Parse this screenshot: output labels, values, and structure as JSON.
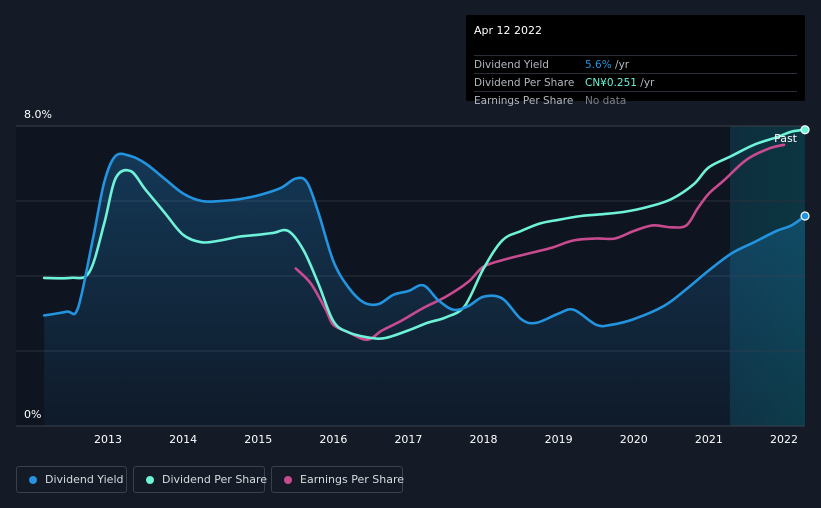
{
  "tooltip": {
    "date": "Apr 12 2022",
    "rows": [
      {
        "label": "Dividend Yield",
        "value": "5.6%",
        "unit": " /yr",
        "color": "#2394df"
      },
      {
        "label": "Dividend Per Share",
        "value": "CN¥0.251",
        "unit": " /yr",
        "color": "#6ef2d8"
      },
      {
        "label": "Earnings Per Share",
        "value": "No data",
        "unit": "",
        "color": "#7b808a"
      }
    ]
  },
  "past_label": "Past",
  "legend": [
    {
      "label": "Dividend Yield",
      "color": "#2394df"
    },
    {
      "label": "Dividend Per Share",
      "color": "#6ef2d8"
    },
    {
      "label": "Earnings Per Share",
      "color": "#c94b8f"
    }
  ],
  "chart_data": {
    "type": "line",
    "y_axis": {
      "min": 0,
      "max": 8.0,
      "tick_labels": [
        "8.0%",
        "0%"
      ]
    },
    "x_ticks": [
      "2013",
      "2014",
      "2015",
      "2016",
      "2017",
      "2018",
      "2019",
      "2020",
      "2021",
      "2022"
    ],
    "x_range": [
      2012.15,
      2022.28
    ],
    "past_region_start": 2021.28,
    "series": [
      {
        "name": "Dividend Yield",
        "color": "#2394df",
        "area": true,
        "points": [
          [
            2012.15,
            2.95
          ],
          [
            2012.45,
            3.05
          ],
          [
            2012.6,
            3.15
          ],
          [
            2012.8,
            5.0
          ],
          [
            2012.95,
            6.5
          ],
          [
            2013.1,
            7.2
          ],
          [
            2013.3,
            7.2
          ],
          [
            2013.5,
            7.0
          ],
          [
            2013.75,
            6.6
          ],
          [
            2014.0,
            6.2
          ],
          [
            2014.25,
            6.0
          ],
          [
            2014.5,
            6.0
          ],
          [
            2014.75,
            6.05
          ],
          [
            2015.0,
            6.15
          ],
          [
            2015.3,
            6.35
          ],
          [
            2015.5,
            6.6
          ],
          [
            2015.65,
            6.5
          ],
          [
            2015.8,
            5.7
          ],
          [
            2016.0,
            4.4
          ],
          [
            2016.2,
            3.7
          ],
          [
            2016.4,
            3.3
          ],
          [
            2016.6,
            3.25
          ],
          [
            2016.8,
            3.5
          ],
          [
            2017.0,
            3.6
          ],
          [
            2017.2,
            3.75
          ],
          [
            2017.4,
            3.35
          ],
          [
            2017.6,
            3.1
          ],
          [
            2017.8,
            3.2
          ],
          [
            2018.0,
            3.45
          ],
          [
            2018.25,
            3.4
          ],
          [
            2018.5,
            2.85
          ],
          [
            2018.7,
            2.75
          ],
          [
            2019.0,
            3.0
          ],
          [
            2019.2,
            3.1
          ],
          [
            2019.5,
            2.7
          ],
          [
            2019.7,
            2.7
          ],
          [
            2020.0,
            2.85
          ],
          [
            2020.4,
            3.2
          ],
          [
            2020.7,
            3.65
          ],
          [
            2021.0,
            4.15
          ],
          [
            2021.3,
            4.6
          ],
          [
            2021.6,
            4.9
          ],
          [
            2021.9,
            5.2
          ],
          [
            2022.1,
            5.35
          ],
          [
            2022.28,
            5.6
          ]
        ]
      },
      {
        "name": "Dividend Per Share",
        "color": "#6ef2d8",
        "area": false,
        "points": [
          [
            2012.15,
            3.95
          ],
          [
            2012.5,
            3.95
          ],
          [
            2012.75,
            4.1
          ],
          [
            2012.95,
            5.4
          ],
          [
            2013.1,
            6.6
          ],
          [
            2013.3,
            6.8
          ],
          [
            2013.5,
            6.3
          ],
          [
            2013.75,
            5.7
          ],
          [
            2014.0,
            5.1
          ],
          [
            2014.25,
            4.9
          ],
          [
            2014.5,
            4.95
          ],
          [
            2014.75,
            5.05
          ],
          [
            2015.0,
            5.1
          ],
          [
            2015.2,
            5.15
          ],
          [
            2015.4,
            5.2
          ],
          [
            2015.6,
            4.7
          ],
          [
            2015.8,
            3.8
          ],
          [
            2016.0,
            2.8
          ],
          [
            2016.2,
            2.5
          ],
          [
            2016.5,
            2.35
          ],
          [
            2016.7,
            2.35
          ],
          [
            2017.0,
            2.55
          ],
          [
            2017.25,
            2.75
          ],
          [
            2017.5,
            2.9
          ],
          [
            2017.75,
            3.2
          ],
          [
            2018.0,
            4.2
          ],
          [
            2018.25,
            4.95
          ],
          [
            2018.5,
            5.2
          ],
          [
            2018.75,
            5.4
          ],
          [
            2019.0,
            5.5
          ],
          [
            2019.3,
            5.6
          ],
          [
            2019.6,
            5.65
          ],
          [
            2019.9,
            5.72
          ],
          [
            2020.2,
            5.85
          ],
          [
            2020.5,
            6.05
          ],
          [
            2020.8,
            6.45
          ],
          [
            2021.0,
            6.9
          ],
          [
            2021.3,
            7.2
          ],
          [
            2021.6,
            7.5
          ],
          [
            2021.9,
            7.7
          ],
          [
            2022.1,
            7.85
          ],
          [
            2022.28,
            7.9
          ]
        ]
      },
      {
        "name": "Earnings Per Share",
        "color": "#c94b8f",
        "area": false,
        "points": [
          [
            2015.5,
            4.2
          ],
          [
            2015.7,
            3.8
          ],
          [
            2015.9,
            3.1
          ],
          [
            2016.0,
            2.7
          ],
          [
            2016.2,
            2.5
          ],
          [
            2016.45,
            2.3
          ],
          [
            2016.65,
            2.55
          ],
          [
            2016.9,
            2.8
          ],
          [
            2017.2,
            3.15
          ],
          [
            2017.5,
            3.45
          ],
          [
            2017.8,
            3.85
          ],
          [
            2018.0,
            4.25
          ],
          [
            2018.3,
            4.45
          ],
          [
            2018.6,
            4.6
          ],
          [
            2018.9,
            4.75
          ],
          [
            2019.2,
            4.95
          ],
          [
            2019.5,
            5.0
          ],
          [
            2019.75,
            5.0
          ],
          [
            2020.0,
            5.2
          ],
          [
            2020.25,
            5.35
          ],
          [
            2020.5,
            5.3
          ],
          [
            2020.7,
            5.35
          ],
          [
            2020.85,
            5.8
          ],
          [
            2021.0,
            6.2
          ],
          [
            2021.2,
            6.55
          ],
          [
            2021.5,
            7.1
          ],
          [
            2021.8,
            7.4
          ],
          [
            2022.0,
            7.5
          ]
        ]
      }
    ],
    "end_markers": [
      {
        "series": "Dividend Yield",
        "x": 2022.28,
        "y": 5.6
      },
      {
        "series": "Dividend Per Share",
        "x": 2022.28,
        "y": 7.9
      }
    ]
  }
}
